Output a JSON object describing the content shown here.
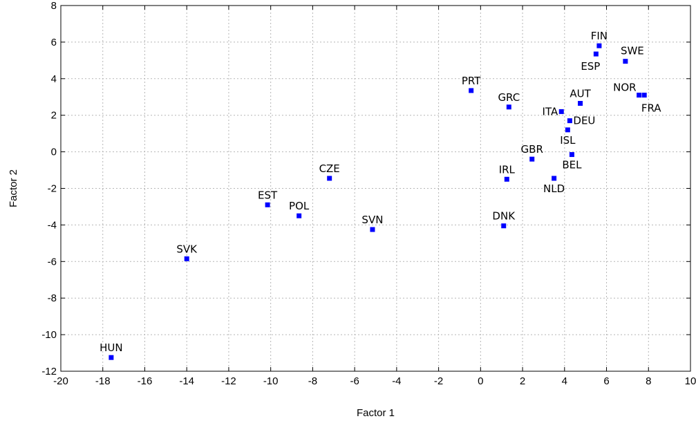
{
  "chart_data": {
    "type": "scatter",
    "title": "",
    "xlabel": "Factor 1",
    "ylabel": "Factor 2",
    "xlim": [
      -20,
      10
    ],
    "ylim": [
      -12,
      8
    ],
    "xticks": [
      -20,
      -18,
      -16,
      -14,
      -12,
      -10,
      -8,
      -6,
      -4,
      -2,
      0,
      2,
      4,
      6,
      8,
      10
    ],
    "yticks": [
      -12,
      -10,
      -8,
      -6,
      -4,
      -2,
      0,
      2,
      4,
      6,
      8
    ],
    "grid": true,
    "marker_color": "#0000ff",
    "points": [
      {
        "label": "FIN",
        "x": 5.65,
        "y": 5.8,
        "anchor": "above"
      },
      {
        "label": "SWE",
        "x": 6.9,
        "y": 4.95,
        "anchor": "above-right"
      },
      {
        "label": "ESP",
        "x": 5.5,
        "y": 5.35,
        "anchor": "below-left"
      },
      {
        "label": "PRT",
        "x": -0.45,
        "y": 3.35,
        "anchor": "above"
      },
      {
        "label": "NOR",
        "x": 7.55,
        "y": 3.1,
        "anchor": "above-left"
      },
      {
        "label": "FRA",
        "x": 7.8,
        "y": 3.1,
        "anchor": "below-right"
      },
      {
        "label": "AUT",
        "x": 4.75,
        "y": 2.65,
        "anchor": "above"
      },
      {
        "label": "GRC",
        "x": 1.35,
        "y": 2.45,
        "anchor": "above"
      },
      {
        "label": "ITA",
        "x": 3.85,
        "y": 2.2,
        "anchor": "left"
      },
      {
        "label": "DEU",
        "x": 4.25,
        "y": 1.7,
        "anchor": "right"
      },
      {
        "label": "ISL",
        "x": 4.15,
        "y": 1.2,
        "anchor": "below"
      },
      {
        "label": "BEL",
        "x": 4.35,
        "y": -0.15,
        "anchor": "below"
      },
      {
        "label": "GBR",
        "x": 2.45,
        "y": -0.4,
        "anchor": "above"
      },
      {
        "label": "NLD",
        "x": 3.5,
        "y": -1.45,
        "anchor": "below"
      },
      {
        "label": "IRL",
        "x": 1.25,
        "y": -1.5,
        "anchor": "above"
      },
      {
        "label": "CZE",
        "x": -7.2,
        "y": -1.45,
        "anchor": "above"
      },
      {
        "label": "EST",
        "x": -10.15,
        "y": -2.9,
        "anchor": "above"
      },
      {
        "label": "POL",
        "x": -8.65,
        "y": -3.5,
        "anchor": "above"
      },
      {
        "label": "DNK",
        "x": 1.1,
        "y": -4.05,
        "anchor": "above"
      },
      {
        "label": "SVN",
        "x": -5.15,
        "y": -4.25,
        "anchor": "above"
      },
      {
        "label": "SVK",
        "x": -14.0,
        "y": -5.85,
        "anchor": "above"
      },
      {
        "label": "HUN",
        "x": -17.6,
        "y": -11.25,
        "anchor": "above"
      }
    ]
  }
}
